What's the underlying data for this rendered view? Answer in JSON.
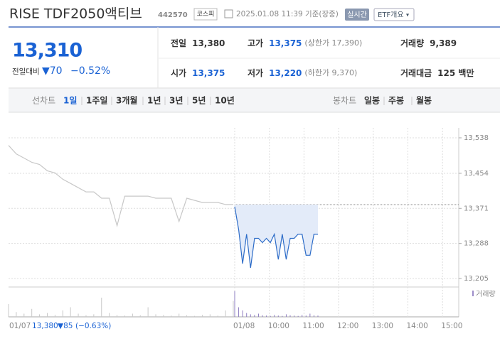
{
  "header": {
    "title": "RISE TDF2050액티브",
    "code": "442570",
    "market": "코스피",
    "timestamp": "2025.01.08 11:39 기준(장중)",
    "realtime_button": "실시간",
    "etf_button": "ETF개요"
  },
  "price": {
    "current": "13,310",
    "change_label": "전일대비",
    "change": "▼70",
    "change_rate": "−0.52%"
  },
  "stats": [
    {
      "label": "전일",
      "value": "13,380"
    },
    {
      "label": "고가",
      "value": "13,375",
      "note": "(상한가 17,390)"
    },
    {
      "label": "거래량",
      "value": "9,389"
    },
    {
      "label": "시가",
      "value": "13,375"
    },
    {
      "label": "저가",
      "value": "13,220",
      "note": "(하한가 9,370)"
    },
    {
      "label": "거래대금",
      "value": "125 백만"
    }
  ],
  "tabs": {
    "line_label": "선차트",
    "line_periods": [
      "1일",
      "1주일",
      "3개월",
      "1년",
      "3년",
      "5년",
      "10년"
    ],
    "active": 0,
    "candle_label": "봉차트",
    "candle_periods": [
      "일봉",
      "주봉",
      "월봉"
    ]
  },
  "chart": {
    "type": "line",
    "ylim": [
      13205,
      13538
    ],
    "yticks": [
      {
        "value": 13538,
        "label": "13,538"
      },
      {
        "value": 13454,
        "label": "13,454"
      },
      {
        "value": 13371,
        "label": "13,371"
      },
      {
        "value": 13288,
        "label": "13,288"
      },
      {
        "value": 13205,
        "label": "13,205"
      }
    ],
    "x_labels": [
      "01/08",
      "10:00",
      "11:00",
      "12:00",
      "13:00",
      "14:00",
      "15:00"
    ],
    "reference_line": 13380,
    "volume_label": "거래량",
    "series": [
      {
        "color": "#c8c8c8",
        "values": [
          13520,
          13500,
          13490,
          13480,
          13475,
          13460,
          13455,
          13440,
          13430,
          13420,
          13410,
          13410,
          13395,
          13395,
          13330,
          13400,
          13400,
          13400,
          13400,
          13395,
          13395,
          13395,
          13340,
          13395,
          13390,
          13385,
          13385,
          13385,
          13380,
          13380
        ],
        "volume": [
          40,
          15,
          10,
          25,
          8,
          12,
          6,
          20,
          30,
          10,
          5,
          8,
          60,
          12,
          6,
          4,
          10,
          5,
          30,
          8,
          6,
          4,
          10,
          5,
          3,
          6,
          8,
          4,
          20,
          50
        ]
      },
      {
        "color": "#2d6cc8",
        "fill": "#e3ebf9",
        "values": [
          13375,
          13320,
          13240,
          13310,
          13230,
          13300,
          13300,
          13290,
          13300,
          13290,
          13310,
          13250,
          13310,
          13250,
          13300,
          13300,
          13310,
          13310,
          13260,
          13260,
          13310,
          13310
        ],
        "volume": [
          80,
          30,
          20,
          12,
          8,
          6,
          10,
          5,
          4,
          3,
          6,
          4,
          3,
          8,
          5,
          4,
          3,
          6,
          4,
          10,
          5,
          4
        ]
      }
    ]
  },
  "footer": {
    "date": "01/07",
    "close": "13,380",
    "change": "▼85",
    "rate": "(−0.63%)"
  }
}
